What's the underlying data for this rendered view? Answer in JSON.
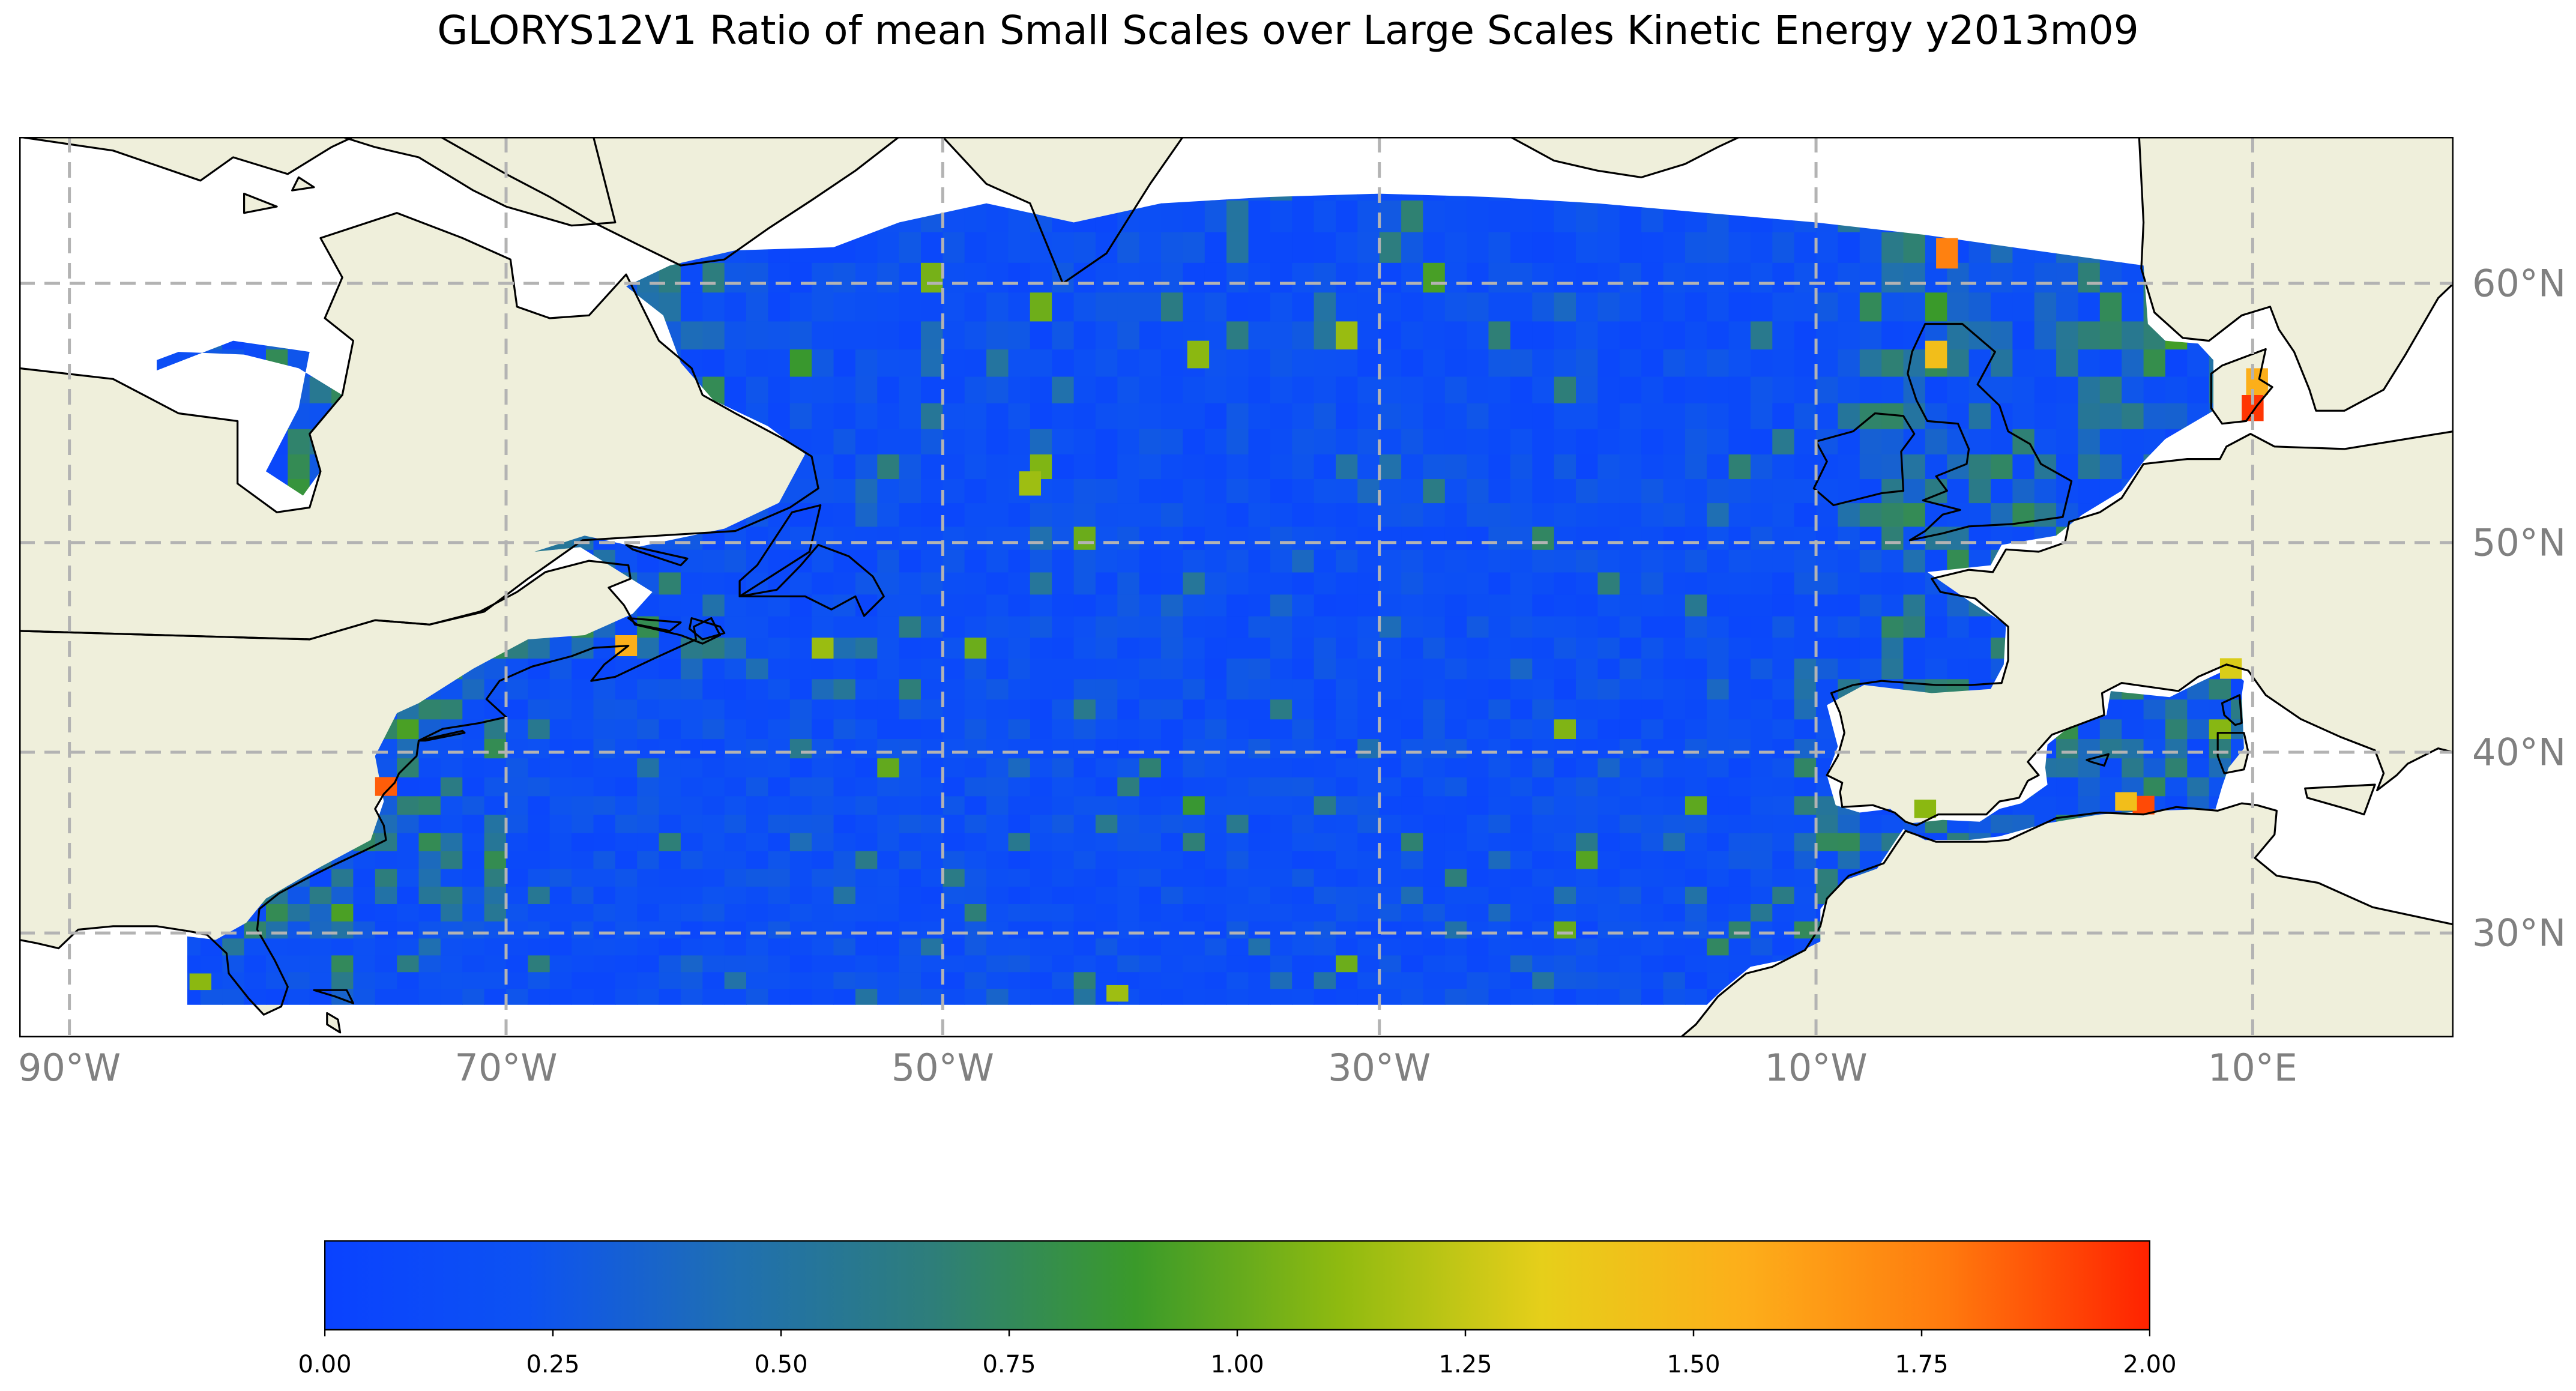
{
  "title": "GLORYS12V1 Ratio of mean Small Scales over Large Scales Kinetic Energy y2013m09",
  "map": {
    "projection": "mercator",
    "lon_range": [
      -92.3,
      19.2
    ],
    "lat_range": [
      23.7,
      64.6
    ],
    "land_color": "#efefdb",
    "coastline_color": "#000000",
    "gridline_style": "dashed",
    "gridline_color": "#b3b3b3",
    "lon_ticks": [
      {
        "value": -90,
        "label": "90°W"
      },
      {
        "value": -70,
        "label": "70°W"
      },
      {
        "value": -50,
        "label": "50°W"
      },
      {
        "value": -30,
        "label": "30°W"
      },
      {
        "value": -10,
        "label": "10°W"
      },
      {
        "value": 10,
        "label": "10°E"
      }
    ],
    "lat_ticks": [
      {
        "value": 30,
        "label": "30°N"
      },
      {
        "value": 40,
        "label": "40°N"
      },
      {
        "value": 50,
        "label": "50°N"
      },
      {
        "value": 60,
        "label": "60°N"
      }
    ]
  },
  "chart_data": {
    "type": "heatmap",
    "variable": "Ratio of mean Small Scales over Large Scales Kinetic Energy",
    "period": "y2013m09",
    "colorbar": {
      "orientation": "horizontal",
      "vmin": 0.0,
      "vmax": 2.0,
      "tick_labels": [
        "0.00",
        "0.25",
        "0.50",
        "0.75",
        "1.00",
        "1.25",
        "1.50",
        "1.75",
        "2.00"
      ],
      "colormap_stops": [
        "#0a42ff",
        "#0d52f2",
        "#1f6fb2",
        "#2e7e7a",
        "#3a9a2a",
        "#8fba10",
        "#e6cf1a",
        "#fdae1a",
        "#ff7a0e",
        "#ff2200"
      ]
    },
    "hotspots": [
      {
        "lon": -75.5,
        "lat": 38.2,
        "value": 1.85
      },
      {
        "lon": -64.5,
        "lat": 45.3,
        "value": 1.55
      },
      {
        "lon": -4.0,
        "lat": 61.0,
        "value": 1.75
      },
      {
        "lon": -4.5,
        "lat": 57.5,
        "value": 1.45
      },
      {
        "lon": 10.0,
        "lat": 55.5,
        "value": 1.95
      },
      {
        "lon": 10.2,
        "lat": 56.5,
        "value": 1.55
      },
      {
        "lon": 5.0,
        "lat": 37.2,
        "value": 1.9
      },
      {
        "lon": 4.2,
        "lat": 37.4,
        "value": 1.45
      },
      {
        "lon": 9.0,
        "lat": 44.2,
        "value": 1.3
      },
      {
        "lon": -38.3,
        "lat": 57.5,
        "value": 1.1
      },
      {
        "lon": -46.0,
        "lat": 52.5,
        "value": 1.15
      },
      {
        "lon": -42.0,
        "lat": 26.4,
        "value": 1.15
      },
      {
        "lon": -84.0,
        "lat": 27.1,
        "value": 1.1
      },
      {
        "lon": -5.0,
        "lat": 37.0,
        "value": 1.1
      }
    ]
  }
}
